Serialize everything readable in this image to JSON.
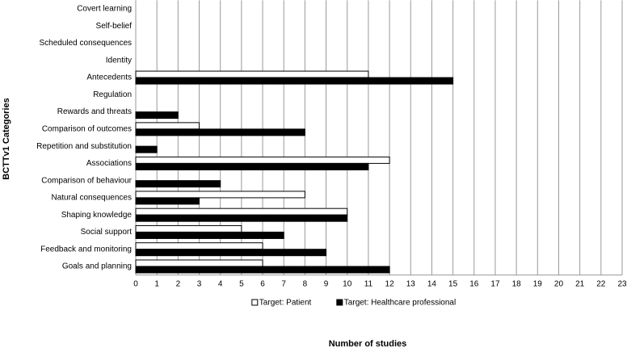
{
  "chart_data": {
    "type": "bar",
    "orientation": "horizontal",
    "x_label": "Number of studies",
    "y_label": "BCTTv1 Categories",
    "categories": [
      "Covert learning",
      "Self-belief",
      "Scheduled consequences",
      "Identity",
      "Antecedents",
      "Regulation",
      "Rewards and threats",
      "Comparison of outcomes",
      "Repetition and substitution",
      "Associations",
      "Comparison of behaviour",
      "Natural consequences",
      "Shaping knowledge",
      "Social support",
      "Feedback and monitoring",
      "Goals and planning"
    ],
    "series": [
      {
        "name": "Target: Patient",
        "color": "#ffffff",
        "values": [
          0,
          0,
          0,
          0,
          11,
          0,
          0,
          3,
          0,
          12,
          0,
          8,
          10,
          5,
          6,
          6
        ]
      },
      {
        "name": "Target: Healthcare professional",
        "color": "#000000",
        "values": [
          0,
          0,
          0,
          0,
          15,
          0,
          2,
          8,
          1,
          11,
          4,
          3,
          10,
          7,
          9,
          12
        ]
      }
    ],
    "xlim": [
      0,
      23
    ],
    "xticks": [
      0,
      1,
      2,
      3,
      4,
      5,
      6,
      7,
      8,
      9,
      10,
      11,
      12,
      13,
      14,
      15,
      16,
      17,
      18,
      19,
      20,
      21,
      22,
      23
    ],
    "grid": true,
    "legend": "bottom"
  }
}
